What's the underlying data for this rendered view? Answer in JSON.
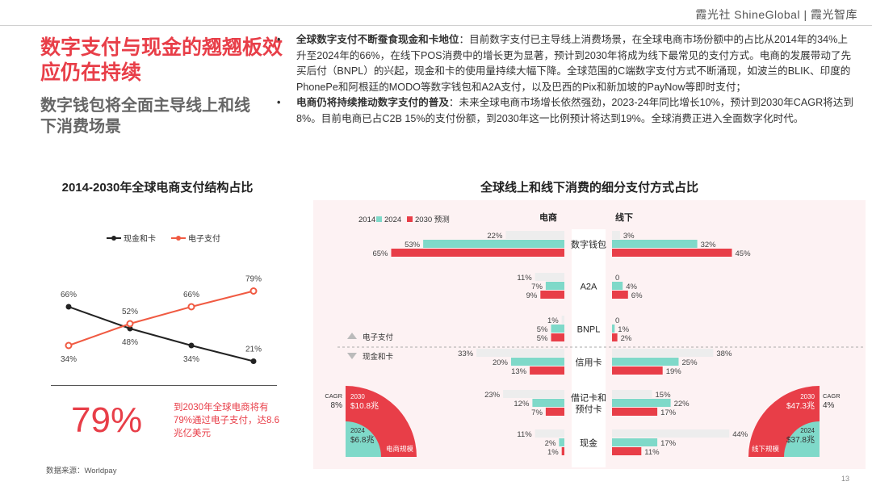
{
  "brand": "霞光社 ShineGlobal | 霞光智库",
  "title": "数字支付与现金的翘翘板效应仍在持续",
  "subtitle": "数字钱包将全面主导线上和线下消费场景",
  "bullets": [
    {
      "bold": "全球数字支付不断蚕食现金和卡地位",
      "text": "：目前数字支付已主导线上消费场景，在全球电商市场份额中的占比从2014年的34%上升至2024年的66%，在线下POS消费中的增长更为显著，预计到2030年将成为线下最常见的支付方式。电商的发展带动了先买后付（BNPL）的兴起，现金和卡的使用量持续大幅下降。全球范围的C端数字支付方式不断涌现，如波兰的BLIK、印度的PhonePe和阿根廷的MODO等数字钱包和A2A支付，以及巴西的Pix和新加坡的PayNow等即时支付；"
    },
    {
      "bold": "电商仍将持续推动数字支付的普及",
      "text": "：未来全球电商市场增长依然强劲，2023-24年同比增长10%，预计到2030年CAGR将达到8%。目前电商已占C2B 15%的支付份额，到2030年这一比例预计将达到19%。全球消费正进入全面数字化时代。"
    }
  ],
  "left_chart_title": "2014-2030年全球电商支付结构占比",
  "right_chart_title": "全球线上和线下消费的细分支付方式占比",
  "big_pct": "79%",
  "big_desc": "到2030年全球电商将有79%通过电子支付，达8.6兆亿美元",
  "source": "数据来源：Worldpay",
  "page_number": "13",
  "colors": {
    "accent": "#e83e48",
    "teal": "#7fd9c9",
    "gray": "#ededed",
    "dark": "#222222",
    "red_line": "#f05a42"
  },
  "chart_data": [
    {
      "type": "line",
      "title": "2014-2030年全球电商支付结构占比",
      "legend_position": "top",
      "series": [
        {
          "name": "现金和卡",
          "values": [
            66,
            48,
            34,
            21
          ],
          "labels": [
            "66%",
            "48%",
            "34%",
            "21%"
          ],
          "color": "#222222"
        },
        {
          "name": "电子支付",
          "values": [
            34,
            52,
            66,
            79
          ],
          "labels": [
            "34%",
            "52%",
            "66%",
            "79%"
          ],
          "color": "#f05a42"
        }
      ],
      "ylim": [
        0,
        100
      ]
    },
    {
      "type": "bar",
      "title": "全球线上和线下消费的细分支付方式占比",
      "legend": [
        "2014",
        "2024",
        "2030 预测"
      ],
      "panels": [
        "电商",
        "线下"
      ],
      "categories": [
        "数字钱包",
        "A2A",
        "BNPL",
        "信用卡",
        "借记卡和预付卡",
        "现金"
      ],
      "category_lines": [
        [
          "数字钱包"
        ],
        [
          "A2A"
        ],
        [
          "BNPL"
        ],
        [
          "信用卡"
        ],
        [
          "借记卡和",
          "预付卡"
        ],
        [
          "现金"
        ]
      ],
      "ecommerce": {
        "2014": [
          22,
          11,
          1,
          33,
          23,
          11
        ],
        "2024": [
          53,
          7,
          5,
          20,
          12,
          2
        ],
        "2030": [
          65,
          9,
          5,
          13,
          7,
          1
        ]
      },
      "offline": {
        "2014": [
          3,
          0,
          0,
          38,
          15,
          44
        ],
        "2024": [
          32,
          4,
          1,
          25,
          22,
          17
        ],
        "2030": [
          45,
          6,
          2,
          19,
          17,
          11
        ]
      },
      "group_labels": {
        "up": "电子支付",
        "down": "现金和卡"
      },
      "pies": {
        "ecommerce": {
          "cagr_label": "CAGR",
          "cagr": "8%",
          "year_2030": "2030",
          "value_2030": "$10.8兆",
          "year_2024": "2024",
          "value_2024": "$6.8兆",
          "label": "电商规模"
        },
        "offline": {
          "cagr_label": "CAGR",
          "cagr": "4%",
          "year_2030": "2030",
          "value_2030": "$47.3兆",
          "year_2024": "2024",
          "value_2024": "$37.8兆",
          "label": "线下规模"
        }
      }
    }
  ]
}
